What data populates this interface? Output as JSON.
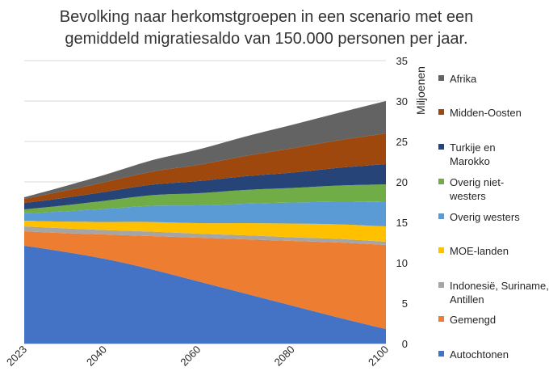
{
  "title": {
    "line1": "Bevolking naar herkomstgroepen in een scenario met een",
    "line2": "gemiddeld migratiesaldo van 150.000 personen per jaar."
  },
  "chart_data": {
    "type": "area",
    "stacked": true,
    "title": "Bevolking naar herkomstgroepen in een scenario met een gemiddeld migratiesaldo van 150.000 personen per jaar.",
    "xlabel": "",
    "ylabel": "Miljoenen",
    "x": [
      2023,
      2030,
      2040,
      2050,
      2060,
      2070,
      2080,
      2090,
      2100
    ],
    "x_ticks": [
      "2023",
      "2040",
      "2060",
      "2080",
      "2100"
    ],
    "ylim": [
      0,
      35
    ],
    "y_ticks": [
      "0",
      "5",
      "10",
      "15",
      "20",
      "25",
      "30",
      "35"
    ],
    "y_axis_side": "right",
    "grid": true,
    "legend_position": "right",
    "series": [
      {
        "name": "Autochtonen",
        "color": "#4472C4",
        "values": [
          12.1,
          11.5,
          10.5,
          9.2,
          7.7,
          6.2,
          4.7,
          3.2,
          1.8
        ]
      },
      {
        "name": "Gemengd",
        "color": "#ED7D31",
        "values": [
          1.8,
          2.2,
          3.0,
          4.1,
          5.4,
          6.7,
          8.0,
          9.3,
          10.4
        ]
      },
      {
        "name": "Indonesië, Suriname, Antillen",
        "color": "#A5A5A5",
        "values": [
          0.6,
          0.6,
          0.55,
          0.55,
          0.5,
          0.5,
          0.45,
          0.45,
          0.4
        ]
      },
      {
        "name": "MOE-landen",
        "color": "#FFC000",
        "values": [
          0.7,
          0.8,
          1.0,
          1.2,
          1.3,
          1.5,
          1.7,
          1.8,
          1.9
        ]
      },
      {
        "name": "Overig westers",
        "color": "#5B9BD5",
        "values": [
          0.9,
          1.2,
          1.6,
          2.0,
          2.2,
          2.4,
          2.6,
          2.8,
          3.0
        ]
      },
      {
        "name": "Overig niet-westers",
        "color": "#70AD47",
        "values": [
          0.5,
          0.7,
          1.0,
          1.3,
          1.5,
          1.7,
          1.8,
          2.0,
          2.2
        ]
      },
      {
        "name": "Turkije en Marokko",
        "color": "#264478",
        "values": [
          0.8,
          0.9,
          1.1,
          1.3,
          1.5,
          1.7,
          1.9,
          2.2,
          2.5
        ]
      },
      {
        "name": "Midden-Oosten",
        "color": "#9E480E",
        "values": [
          0.5,
          0.8,
          1.2,
          1.6,
          2.0,
          2.5,
          3.0,
          3.4,
          3.8
        ]
      },
      {
        "name": "Afrika",
        "color": "#636363",
        "values": [
          0.2,
          0.5,
          0.9,
          1.4,
          1.9,
          2.4,
          2.9,
          3.4,
          4.0
        ]
      }
    ]
  },
  "legend": {
    "items": [
      {
        "label": "Afrika",
        "color": "#636363"
      },
      {
        "label": "Midden-Oosten",
        "color": "#9E480E"
      },
      {
        "label": "Turkije en Marokko",
        "color": "#264478"
      },
      {
        "label": "Overig niet-westers",
        "color": "#70AD47"
      },
      {
        "label": "Overig westers",
        "color": "#5B9BD5"
      },
      {
        "label": "MOE-landen",
        "color": "#FFC000"
      },
      {
        "label": "Indonesië, Suriname, Antillen",
        "color": "#A5A5A5"
      },
      {
        "label": "Gemengd",
        "color": "#ED7D31"
      },
      {
        "label": "Autochtonen",
        "color": "#4472C4"
      }
    ]
  }
}
